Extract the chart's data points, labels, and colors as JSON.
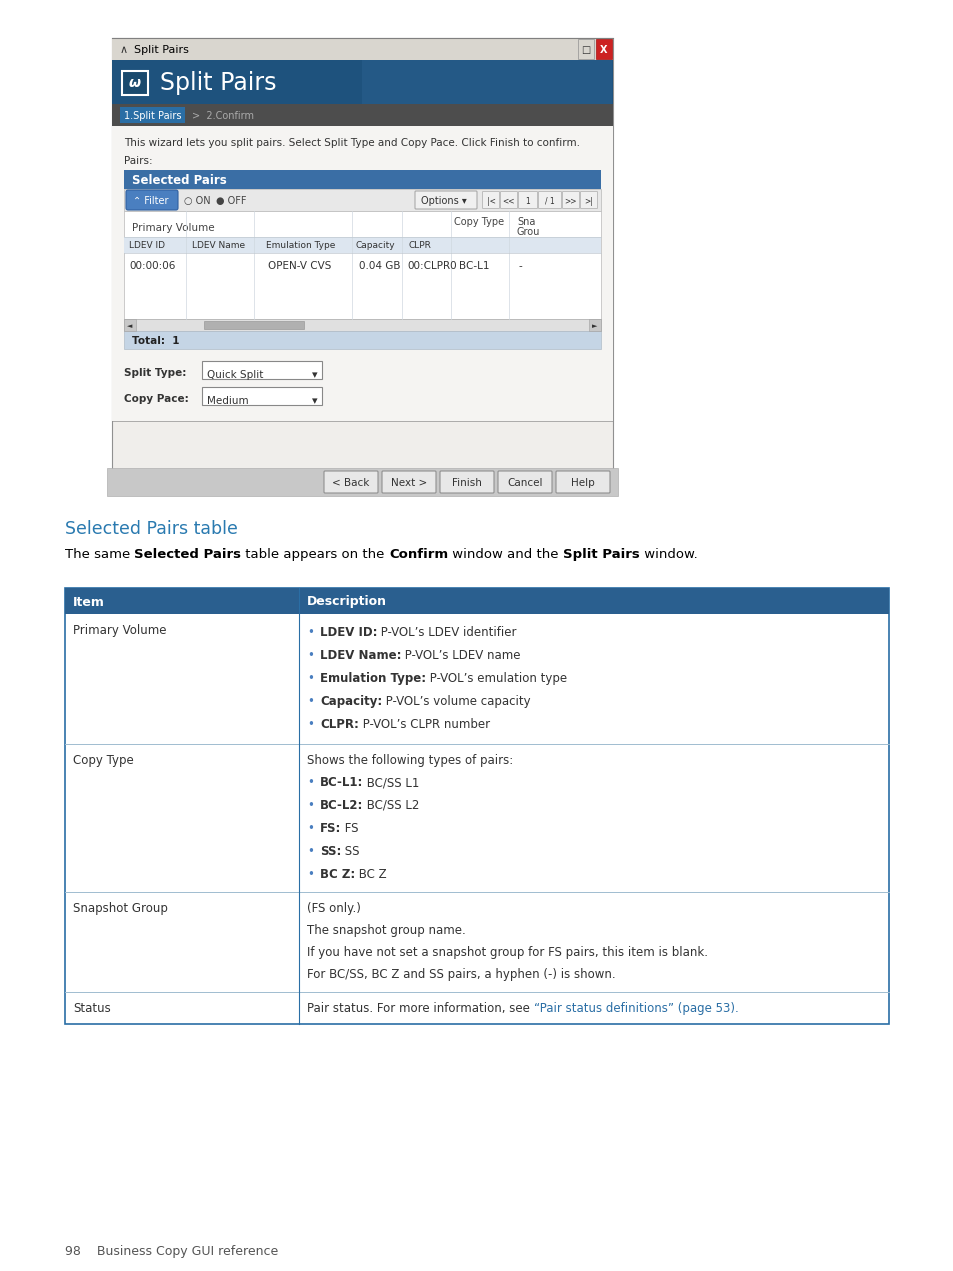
{
  "bg_color": "#ffffff",
  "section_title": "Selected Pairs table",
  "section_title_color": "#2a7ab0",
  "footer_text": "98    Business Copy GUI reference",
  "table": {
    "border_color": "#2a6ea5",
    "header_bg": "#2a5f8f",
    "header_text_color": "#ffffff",
    "row_border_color": "#a0bcd0",
    "headers": [
      "Item",
      "Description"
    ],
    "rows": [
      {
        "item": "Primary Volume",
        "type": "bullets_bold",
        "desc_lines": [
          {
            "bold": "LDEV ID:",
            "normal": " P-VOL’s LDEV identifier"
          },
          {
            "bold": "LDEV Name:",
            "normal": " P-VOL’s LDEV name"
          },
          {
            "bold": "Emulation Type:",
            "normal": " P-VOL’s emulation type"
          },
          {
            "bold": "Capacity:",
            "normal": " P-VOL’s volume capacity"
          },
          {
            "bold": "CLPR:",
            "normal": " P-VOL’s CLPR number"
          }
        ]
      },
      {
        "item": "Copy Type",
        "type": "bullets_bold_with_intro",
        "intro": "Shows the following types of pairs:",
        "desc_lines": [
          {
            "bold": "BC-L1:",
            "normal": " BC/SS L1"
          },
          {
            "bold": "BC-L2:",
            "normal": " BC/SS L2"
          },
          {
            "bold": "FS:",
            "normal": " FS"
          },
          {
            "bold": "SS:",
            "normal": " SS"
          },
          {
            "bold": "BC Z:",
            "normal": " BC Z"
          }
        ]
      },
      {
        "item": "Snapshot Group",
        "type": "plain",
        "desc_lines": [
          "(FS only.)",
          "The snapshot group name.",
          "If you have not set a snapshot group for FS pairs, this item is blank.",
          "For BC/SS, BC Z and SS pairs, a hyphen (-) is shown."
        ]
      },
      {
        "item": "Status",
        "type": "link",
        "pre_link": "Pair status. For more information, see ",
        "link_text": "“Pair status definitions” (page 53).",
        "link_color": "#2a6ea5"
      }
    ]
  }
}
